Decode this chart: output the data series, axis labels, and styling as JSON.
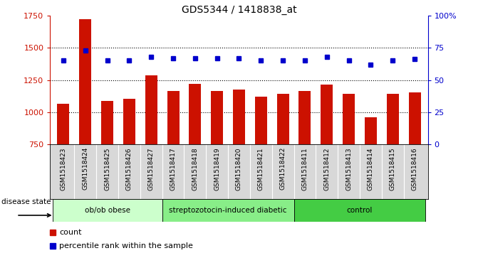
{
  "title": "GDS5344 / 1418838_at",
  "samples": [
    "GSM1518423",
    "GSM1518424",
    "GSM1518425",
    "GSM1518426",
    "GSM1518427",
    "GSM1518417",
    "GSM1518418",
    "GSM1518419",
    "GSM1518420",
    "GSM1518421",
    "GSM1518422",
    "GSM1518411",
    "GSM1518412",
    "GSM1518413",
    "GSM1518414",
    "GSM1518415",
    "GSM1518416"
  ],
  "counts": [
    1065,
    1720,
    1090,
    1105,
    1285,
    1165,
    1220,
    1165,
    1175,
    1120,
    1140,
    1165,
    1215,
    1140,
    960,
    1140,
    1155
  ],
  "percentile_ranks": [
    65,
    73,
    65,
    65,
    68,
    67,
    67,
    67,
    67,
    65,
    65,
    65,
    68,
    65,
    62,
    65,
    66
  ],
  "groups": [
    {
      "label": "ob/ob obese",
      "start": 0,
      "end": 5,
      "color": "#ccffcc"
    },
    {
      "label": "streptozotocin-induced diabetic",
      "start": 5,
      "end": 11,
      "color": "#88ee88"
    },
    {
      "label": "control",
      "start": 11,
      "end": 17,
      "color": "#44cc44"
    }
  ],
  "bar_color": "#cc1100",
  "dot_color": "#0000cc",
  "ylim_left": [
    750,
    1750
  ],
  "ylim_right": [
    0,
    100
  ],
  "yticks_left": [
    750,
    1000,
    1250,
    1500,
    1750
  ],
  "yticks_right": [
    0,
    25,
    50,
    75,
    100
  ],
  "grid_values": [
    1000,
    1250,
    1500
  ],
  "bar_width": 0.55,
  "bg_color": "#d8d8d8"
}
